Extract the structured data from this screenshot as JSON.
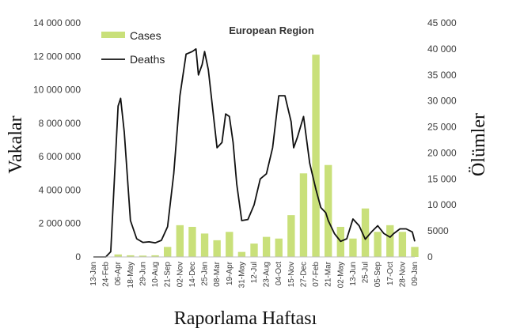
{
  "chart_data": {
    "type": "bar",
    "title": "European Region",
    "xlabel": "Raporlama Haftası",
    "ylabel_left": "Vakalar",
    "ylabel_right": "Ölümler",
    "y_left_range": [
      0,
      14000000
    ],
    "y_right_range": [
      0,
      45000
    ],
    "y_left_ticks": [
      "0",
      "2 000 000",
      "4 000 000",
      "6 000 000",
      "8 000 000",
      "10 000 000",
      "12 000 000",
      "14 000 000"
    ],
    "y_right_ticks": [
      "0",
      "5000",
      "10 000",
      "15 000",
      "20 000",
      "25 000",
      "30 000",
      "35 000",
      "40 000",
      "45 000"
    ],
    "x_tick_labels": [
      "13-Jan",
      "24-Feb",
      "06-Apr",
      "18-May",
      "29-Jun",
      "10-Aug",
      "21-Sep",
      "02-Nov",
      "14-Dec",
      "25-Jan",
      "08-Mar",
      "19-Apr",
      "31-May",
      "12-Jul",
      "23-Aug",
      "04-Oct",
      "15-Nov",
      "27-Dec",
      "07-Feb",
      "21-Mar",
      "02-May",
      "13-Jun",
      "25-Jul",
      "05-Sep",
      "17-Oct",
      "28-Nov",
      "09-Jan"
    ],
    "legend": [
      {
        "name": "Cases",
        "color": "#c9e07a"
      },
      {
        "name": "Deaths",
        "color": "#111111"
      }
    ],
    "legend_position": "top-left",
    "grid": false,
    "series": [
      {
        "name": "Cases",
        "axis": "left",
        "color": "#c9e07a",
        "type": "bar",
        "x": [
          0,
          1,
          2,
          3,
          4,
          5,
          6,
          7,
          8,
          9,
          10,
          11,
          12,
          13,
          14,
          15,
          16,
          17,
          18,
          19,
          20,
          21,
          22,
          23,
          24,
          25,
          26
        ],
        "values": [
          0,
          20000,
          150000,
          100000,
          80000,
          100000,
          600000,
          1900000,
          1800000,
          1400000,
          1000000,
          1500000,
          300000,
          800000,
          1200000,
          1100000,
          2500000,
          5000000,
          12100000,
          5500000,
          1800000,
          1100000,
          2900000,
          1500000,
          1900000,
          1500000,
          600000
        ]
      },
      {
        "name": "Deaths",
        "axis": "right",
        "color": "#111111",
        "type": "line",
        "x": [
          0,
          1,
          1.4,
          2,
          2.2,
          2.5,
          3,
          3.5,
          4,
          4.5,
          5,
          5.5,
          6,
          6.5,
          7,
          7.5,
          8,
          8.3,
          8.5,
          8.8,
          9,
          9.3,
          10,
          10.4,
          10.7,
          11,
          11.3,
          11.6,
          12,
          12.5,
          13,
          13.5,
          14,
          14.5,
          15,
          15.5,
          16,
          16.2,
          16.5,
          17,
          17.5,
          18,
          18.4,
          18.8,
          19,
          19.5,
          20,
          20.5,
          21,
          21.5,
          22,
          22.5,
          23,
          23.5,
          24,
          24.3,
          24.8,
          25.3,
          25.8,
          26
        ],
        "values": [
          0,
          0,
          1000,
          29000,
          30500,
          24000,
          7000,
          3500,
          2800,
          2900,
          2700,
          3200,
          5800,
          16000,
          31000,
          39000,
          39500,
          40000,
          35000,
          37000,
          39500,
          36000,
          21000,
          22000,
          27500,
          27000,
          22000,
          14000,
          7000,
          7200,
          10000,
          15000,
          16000,
          21000,
          31000,
          31000,
          26000,
          21000,
          23000,
          27000,
          18000,
          13000,
          9500,
          8500,
          7000,
          4500,
          3000,
          3500,
          7300,
          6000,
          3400,
          4800,
          6000,
          4500,
          3800,
          4500,
          5400,
          5400,
          4800,
          3000
        ]
      }
    ]
  }
}
